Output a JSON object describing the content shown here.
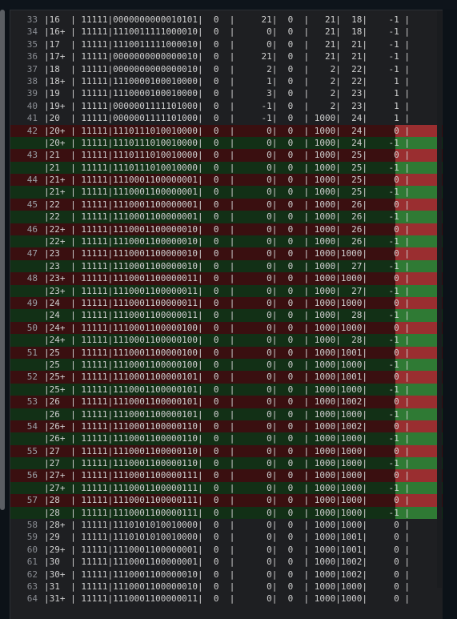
{
  "colors": {
    "deleted_row": "#3a0f10",
    "added_row": "#123016",
    "cell_red": "#9a2e30",
    "cell_green": "#2f7a34"
  },
  "lines": [
    {
      "n": "33",
      "t": "|16  | 11111|0000000000010101|  0  |     21|  0  |   21|  18|    -1 |",
      "k": ""
    },
    {
      "n": "34",
      "t": "|16+ | 11111|1110011111000010|  0  |      0|  0  |   21|  18|    -1 |",
      "k": ""
    },
    {
      "n": "35",
      "t": "|17  | 11111|1110011111000010|  0  |      0|  0  |   21|  21|    -1 |",
      "k": ""
    },
    {
      "n": "36",
      "t": "|17+ | 11111|0000000000000010|  0  |     21|  0  |   21|  21|    -1 |",
      "k": ""
    },
    {
      "n": "37",
      "t": "|18  | 11111|0000000000000010|  0  |      2|  0  |    2|  22|    -1 |",
      "k": ""
    },
    {
      "n": "38",
      "t": "|18+ | 11111|1110000100010000|  0  |      1|  0  |    2|  22|     1 |",
      "k": ""
    },
    {
      "n": "39",
      "t": "|19  | 11111|1110000100010000|  0  |      3|  0  |    2|  23|     1 |",
      "k": ""
    },
    {
      "n": "40",
      "t": "|19+ | 11111|0000001111101000|  0  |     -1|  0  |    2|  23|     1 |",
      "k": ""
    },
    {
      "n": "41",
      "t": "|20  | 11111|0000001111101000|  0  |     -1|  0  | 1000|  24|     1 |",
      "k": ""
    },
    {
      "n": "42",
      "t": "|20+ | 11111|1110111010010000|  0  |      0|  0  | 1000|  24|     0 |",
      "k": "del"
    },
    {
      "n": "",
      "t": "|20+ | 11111|1110111010010000|  0  |      0|  0  | 1000|  24|    -1 |",
      "k": "add"
    },
    {
      "n": "43",
      "t": "|21  | 11111|1110111010010000|  0  |      0|  0  | 1000|  25|     0 |",
      "k": "del"
    },
    {
      "n": "",
      "t": "|21  | 11111|1110111010010000|  0  |      0|  0  | 1000|  25|    -1 |",
      "k": "add"
    },
    {
      "n": "44",
      "t": "|21+ | 11111|1110001100000001|  0  |      0|  0  | 1000|  25|     0 |",
      "k": "del"
    },
    {
      "n": "",
      "t": "|21+ | 11111|1110001100000001|  0  |      0|  0  | 1000|  25|    -1 |",
      "k": "add"
    },
    {
      "n": "45",
      "t": "|22  | 11111|1110001100000001|  0  |      0|  0  | 1000|  26|     0 |",
      "k": "del"
    },
    {
      "n": "",
      "t": "|22  | 11111|1110001100000001|  0  |      0|  0  | 1000|  26|    -1 |",
      "k": "add"
    },
    {
      "n": "46",
      "t": "|22+ | 11111|1110001100000010|  0  |      0|  0  | 1000|  26|     0 |",
      "k": "del"
    },
    {
      "n": "",
      "t": "|22+ | 11111|1110001100000010|  0  |      0|  0  | 1000|  26|    -1 |",
      "k": "add"
    },
    {
      "n": "47",
      "t": "|23  | 11111|1110001100000010|  0  |      0|  0  | 1000|1000|     0 |",
      "k": "del"
    },
    {
      "n": "",
      "t": "|23  | 11111|1110001100000010|  0  |      0|  0  | 1000|  27|    -1 |",
      "k": "add"
    },
    {
      "n": "48",
      "t": "|23+ | 11111|1110001100000011|  0  |      0|  0  | 1000|1000|     0 |",
      "k": "del"
    },
    {
      "n": "",
      "t": "|23+ | 11111|1110001100000011|  0  |      0|  0  | 1000|  27|    -1 |",
      "k": "add"
    },
    {
      "n": "49",
      "t": "|24  | 11111|1110001100000011|  0  |      0|  0  | 1000|1000|     0 |",
      "k": "del"
    },
    {
      "n": "",
      "t": "|24  | 11111|1110001100000011|  0  |      0|  0  | 1000|  28|    -1 |",
      "k": "add"
    },
    {
      "n": "50",
      "t": "|24+ | 11111|1110001100000100|  0  |      0|  0  | 1000|1000|     0 |",
      "k": "del"
    },
    {
      "n": "",
      "t": "|24+ | 11111|1110001100000100|  0  |      0|  0  | 1000|  28|    -1 |",
      "k": "add"
    },
    {
      "n": "51",
      "t": "|25  | 11111|1110001100000100|  0  |      0|  0  | 1000|1001|     0 |",
      "k": "del"
    },
    {
      "n": "",
      "t": "|25  | 11111|1110001100000100|  0  |      0|  0  | 1000|1000|    -1 |",
      "k": "add"
    },
    {
      "n": "52",
      "t": "|25+ | 11111|1110001100000101|  0  |      0|  0  | 1000|1001|     0 |",
      "k": "del"
    },
    {
      "n": "",
      "t": "|25+ | 11111|1110001100000101|  0  |      0|  0  | 1000|1000|    -1 |",
      "k": "add"
    },
    {
      "n": "53",
      "t": "|26  | 11111|1110001100000101|  0  |      0|  0  | 1000|1002|     0 |",
      "k": "del"
    },
    {
      "n": "",
      "t": "|26  | 11111|1110001100000101|  0  |      0|  0  | 1000|1000|    -1 |",
      "k": "add"
    },
    {
      "n": "54",
      "t": "|26+ | 11111|1110001100000110|  0  |      0|  0  | 1000|1002|     0 |",
      "k": "del"
    },
    {
      "n": "",
      "t": "|26+ | 11111|1110001100000110|  0  |      0|  0  | 1000|1000|    -1 |",
      "k": "add"
    },
    {
      "n": "55",
      "t": "|27  | 11111|1110001100000110|  0  |      0|  0  | 1000|1000|     0 |",
      "k": "del"
    },
    {
      "n": "",
      "t": "|27  | 11111|1110001100000110|  0  |      0|  0  | 1000|1000|    -1 |",
      "k": "add"
    },
    {
      "n": "56",
      "t": "|27+ | 11111|1110001100000111|  0  |      0|  0  | 1000|1000|     0 |",
      "k": "del"
    },
    {
      "n": "",
      "t": "|27+ | 11111|1110001100000111|  0  |      0|  0  | 1000|1000|    -1 |",
      "k": "add"
    },
    {
      "n": "57",
      "t": "|28  | 11111|1110001100000111|  0  |      0|  0  | 1000|1000|     0 |",
      "k": "del"
    },
    {
      "n": "",
      "t": "|28  | 11111|1110001100000111|  0  |      0|  0  | 1000|1000|    -1 |",
      "k": "add"
    },
    {
      "n": "58",
      "t": "|28+ | 11111|1110101010010000|  0  |      0|  0  | 1000|1000|     0 |",
      "k": ""
    },
    {
      "n": "59",
      "t": "|29  | 11111|1110101010010000|  0  |      0|  0  | 1000|1001|     0 |",
      "k": ""
    },
    {
      "n": "60",
      "t": "|29+ | 11111|1110001100000001|  0  |      0|  0  | 1000|1001|     0 |",
      "k": ""
    },
    {
      "n": "61",
      "t": "|30  | 11111|1110001100000001|  0  |      0|  0  | 1000|1002|     0 |",
      "k": ""
    },
    {
      "n": "62",
      "t": "|30+ | 11111|1110001100000010|  0  |      0|  0  | 1000|1002|     0 |",
      "k": ""
    },
    {
      "n": "63",
      "t": "|31  | 11111|1110001100000010|  0  |      0|  0  | 1000|1000|     0 |",
      "k": ""
    },
    {
      "n": "64",
      "t": "|31+ | 11111|1110001100000011|  0  |      0|  0  | 1000|1000|     0 |",
      "k": ""
    }
  ]
}
